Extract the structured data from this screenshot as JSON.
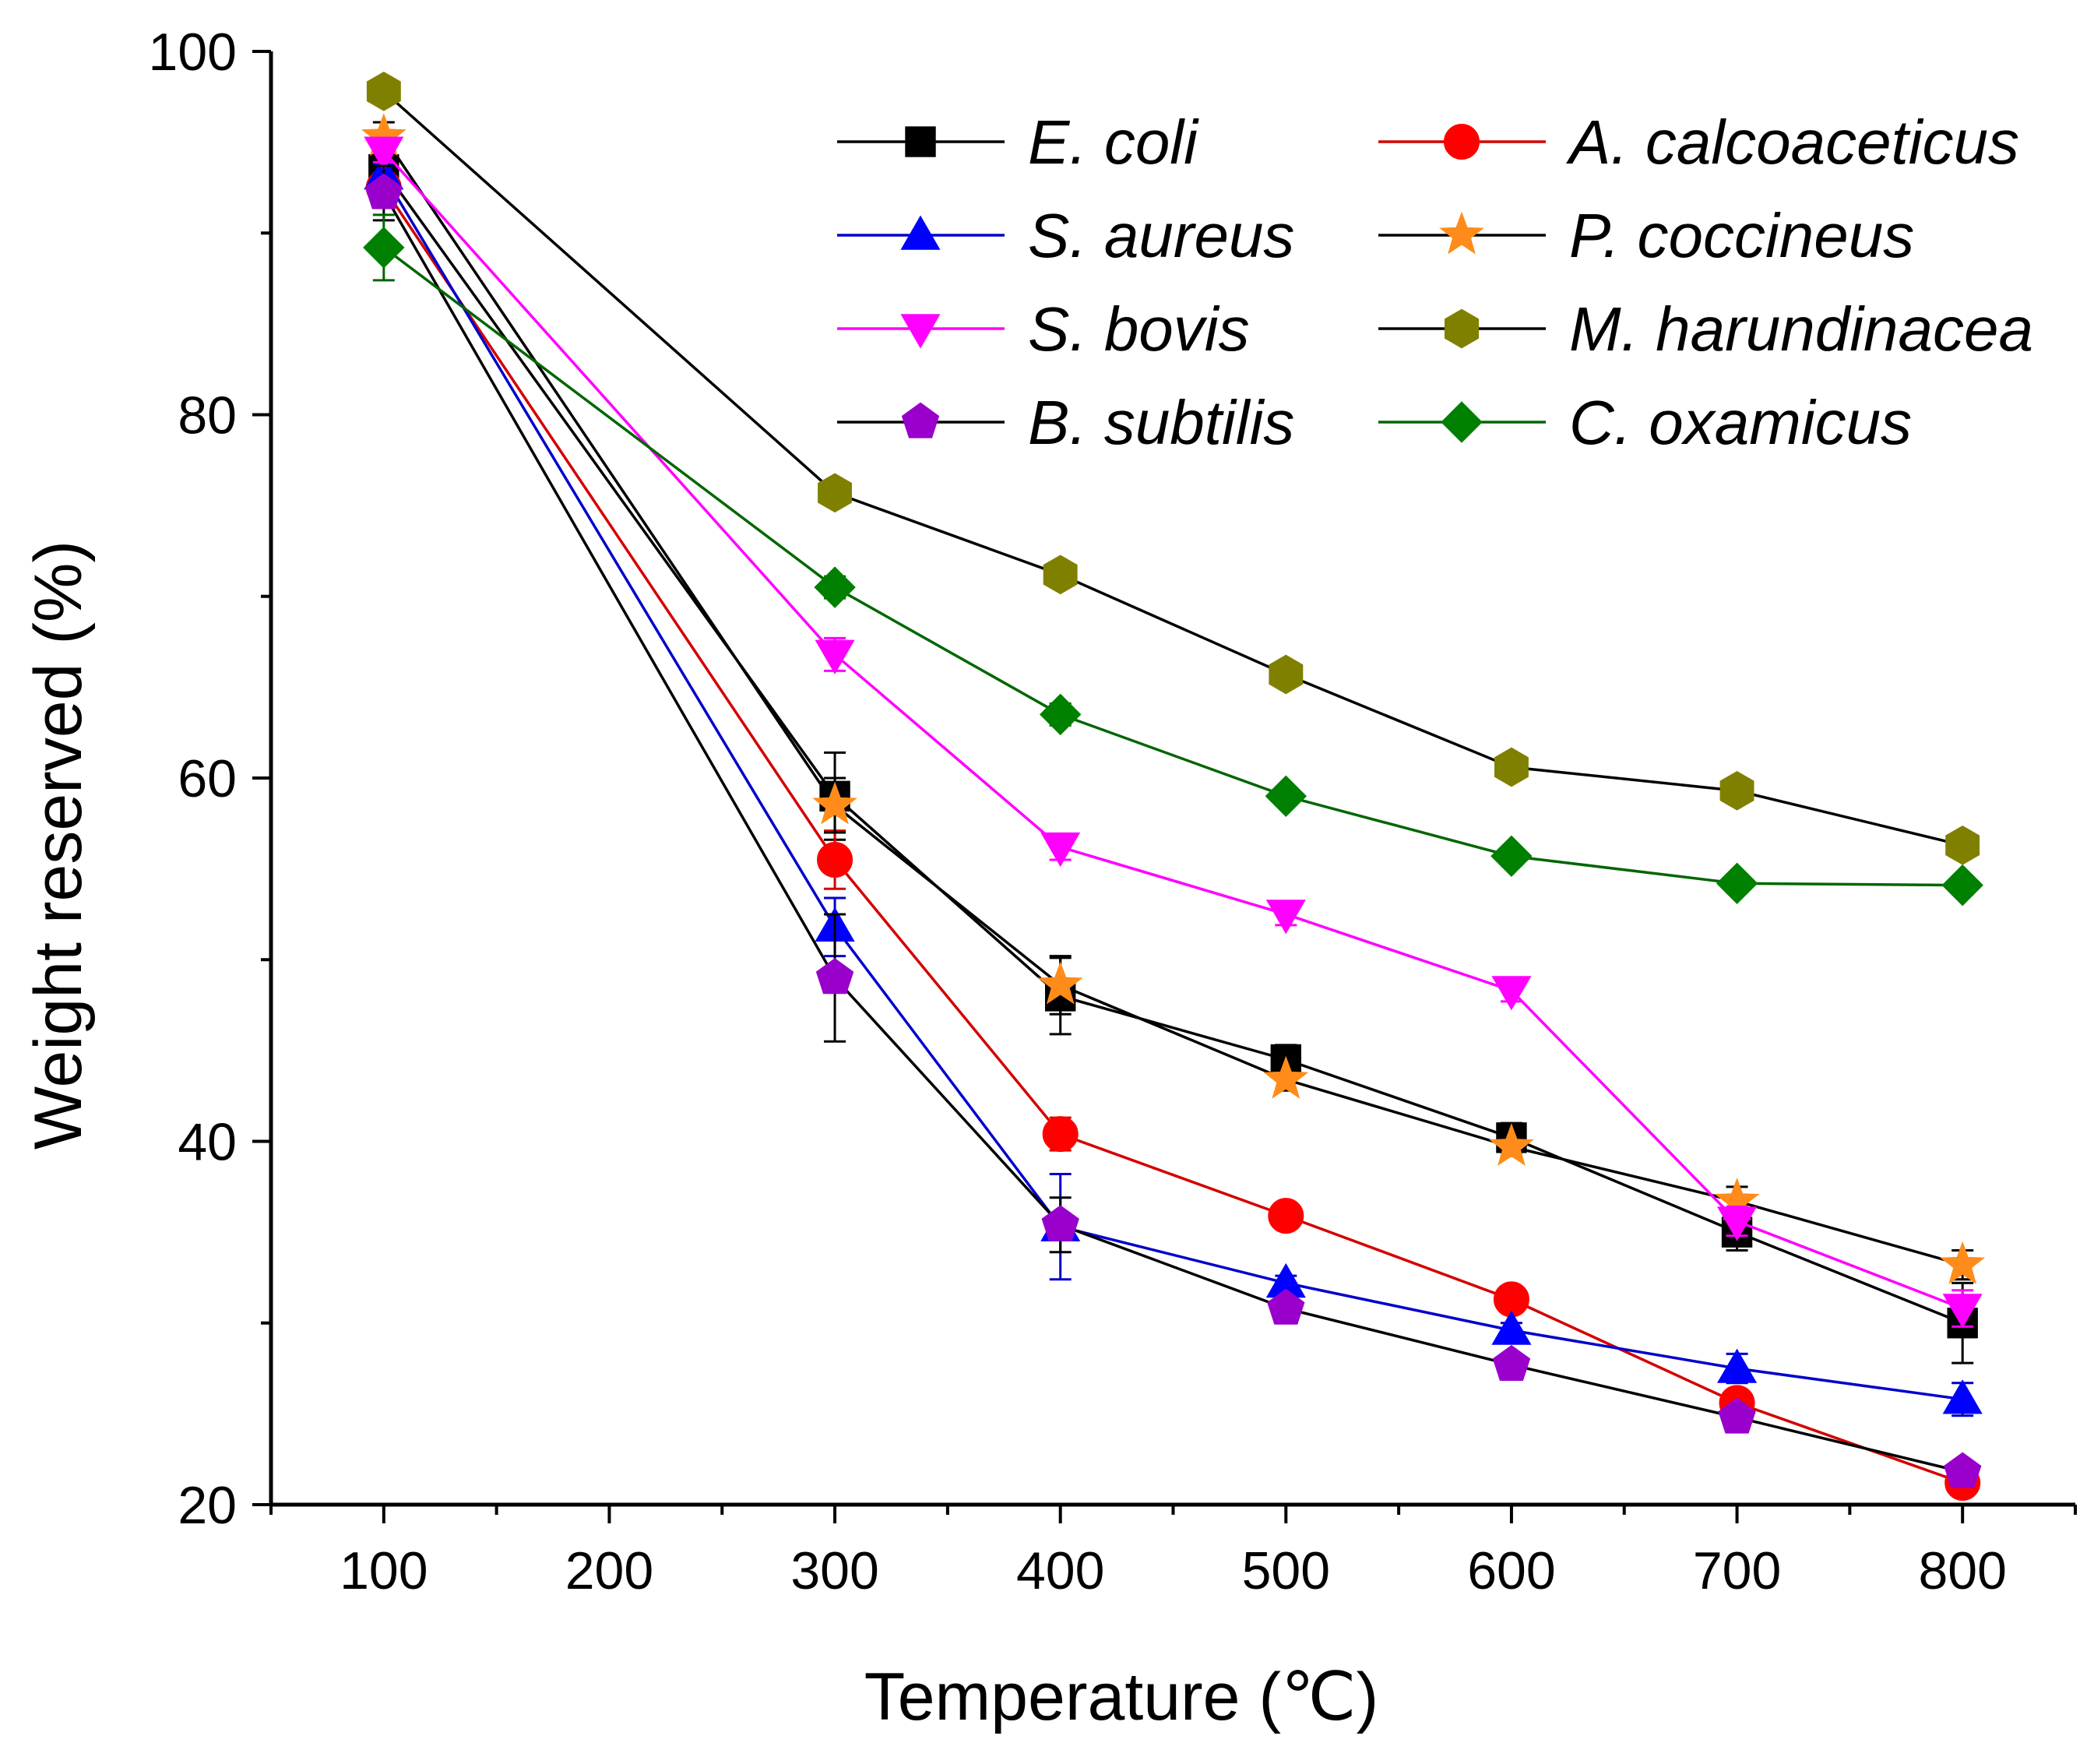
{
  "chart_data": {
    "type": "line",
    "xlabel": "Temperature (℃)",
    "ylabel": "Weight reserved (%)",
    "xlim": [
      50,
      850
    ],
    "ylim": [
      20,
      100
    ],
    "xticks": [
      100,
      200,
      300,
      400,
      500,
      600,
      700,
      800
    ],
    "yticks": [
      20,
      40,
      60,
      80,
      100
    ],
    "x": [
      100,
      300,
      400,
      500,
      600,
      700,
      800
    ],
    "legend_position": "top-right",
    "series": [
      {
        "name": "E. coli",
        "values": [
          93.5,
          59.0,
          48.0,
          44.5,
          40.2,
          35.0,
          30.0
        ],
        "err": [
          0.8,
          2.4,
          2.1,
          0.8,
          0.8,
          1.0,
          2.2
        ],
        "color": "#000000",
        "line_color": "#000000",
        "marker": "square"
      },
      {
        "name": "A. calcoaceticus",
        "values": [
          92.5,
          55.5,
          40.4,
          35.9,
          31.3,
          25.6,
          21.2
        ],
        "err": [
          0.8,
          1.6,
          0.9,
          0.4,
          0.4,
          0.5,
          0.4
        ],
        "color": "#ff0000",
        "line_color": "#d40000",
        "marker": "circle"
      },
      {
        "name": "S. aureus",
        "values": [
          93.2,
          51.8,
          35.3,
          32.2,
          29.6,
          27.5,
          25.8
        ],
        "err": [
          0.6,
          1.6,
          2.9,
          0.4,
          0.4,
          0.8,
          0.9
        ],
        "color": "#0000ff",
        "line_color": "#0000cc",
        "marker": "triangle-up"
      },
      {
        "name": "P. coccineus",
        "values": [
          95.3,
          58.5,
          48.6,
          43.4,
          39.7,
          36.7,
          33.2
        ],
        "err": [
          0.8,
          1.5,
          1.6,
          0.6,
          0.5,
          0.8,
          0.8
        ],
        "color": "#ff8c1a",
        "line_color": "#000000",
        "marker": "star"
      },
      {
        "name": "S. bovis",
        "values": [
          94.5,
          66.8,
          56.2,
          52.5,
          48.3,
          35.6,
          30.8
        ],
        "err": [
          0.6,
          0.9,
          0.7,
          0.6,
          0.6,
          0.8,
          1.0
        ],
        "color": "#ff00ff",
        "line_color": "#ff00ff",
        "marker": "triangle-down"
      },
      {
        "name": "M. harundinacea",
        "values": [
          97.8,
          75.7,
          71.2,
          65.7,
          60.6,
          59.3,
          56.3
        ],
        "err": [
          0.4,
          0.4,
          0.4,
          0.4,
          0.4,
          0.4,
          0.4
        ],
        "color": "#808000",
        "line_color": "#000000",
        "marker": "hexagon"
      },
      {
        "name": "B. subtilis",
        "values": [
          92.2,
          49.0,
          35.4,
          30.8,
          27.7,
          24.8,
          21.8
        ],
        "err": [
          1.5,
          3.5,
          1.5,
          0.6,
          0.5,
          0.6,
          0.5
        ],
        "color": "#9900cc",
        "line_color": "#000000",
        "marker": "pentagon"
      },
      {
        "name": "C. oxamicus",
        "values": [
          89.2,
          70.5,
          63.5,
          59.0,
          55.7,
          54.2,
          54.1
        ],
        "err": [
          1.8,
          0.6,
          0.6,
          0.5,
          0.5,
          0.5,
          0.5
        ],
        "color": "#008000",
        "line_color": "#006600",
        "marker": "diamond"
      }
    ]
  }
}
